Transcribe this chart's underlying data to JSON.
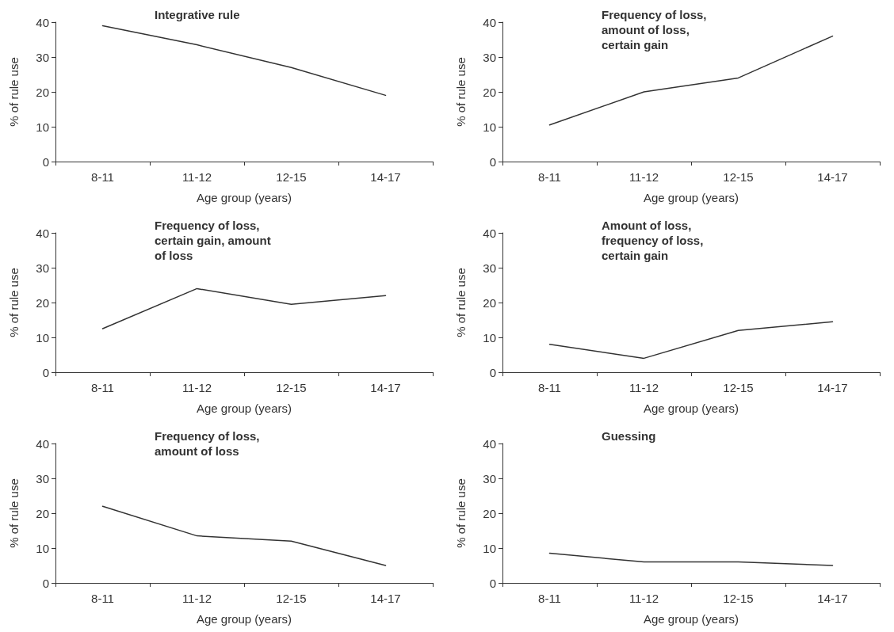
{
  "chart_data": [
    {
      "type": "line",
      "title": "Integrative rule",
      "xlabel": "Age group (years)",
      "ylabel": "% of rule use",
      "categories": [
        "8-11",
        "11-12",
        "12-15",
        "14-17"
      ],
      "series": [
        {
          "color": "#333333",
          "values": [
            39,
            33.5,
            27,
            19
          ]
        }
      ],
      "ylim": [
        0,
        40
      ],
      "yticks": [
        0,
        10,
        20,
        30,
        40
      ],
      "grid": false,
      "marker": "none",
      "line_style": "solid"
    },
    {
      "type": "line",
      "title": "Frequency of loss, amount of loss, certain gain",
      "xlabel": "Age group (years)",
      "ylabel": "% of rule use",
      "categories": [
        "8-11",
        "11-12",
        "12-15",
        "14-17"
      ],
      "series": [
        {
          "color": "#333333",
          "values": [
            10.5,
            20,
            24,
            36
          ]
        }
      ],
      "ylim": [
        0,
        40
      ],
      "yticks": [
        0,
        10,
        20,
        30,
        40
      ],
      "grid": false,
      "marker": "none",
      "line_style": "solid"
    },
    {
      "type": "line",
      "title": "Frequency of loss, certain gain, amount of loss",
      "xlabel": "Age group (years)",
      "ylabel": "% of rule use",
      "categories": [
        "8-11",
        "11-12",
        "12-15",
        "14-17"
      ],
      "series": [
        {
          "color": "#333333",
          "values": [
            12.5,
            24,
            19.5,
            22
          ]
        }
      ],
      "ylim": [
        0,
        40
      ],
      "yticks": [
        0,
        10,
        20,
        30,
        40
      ],
      "grid": false,
      "marker": "none",
      "line_style": "solid"
    },
    {
      "type": "line",
      "title": "Amount of loss, frequency of loss, certain gain",
      "xlabel": "Age group (years)",
      "ylabel": "% of rule use",
      "categories": [
        "8-11",
        "11-12",
        "12-15",
        "14-17"
      ],
      "series": [
        {
          "color": "#333333",
          "values": [
            8,
            4,
            12,
            14.5
          ]
        }
      ],
      "ylim": [
        0,
        40
      ],
      "yticks": [
        0,
        10,
        20,
        30,
        40
      ],
      "grid": false,
      "marker": "none",
      "line_style": "solid"
    },
    {
      "type": "line",
      "title": "Frequency of loss, amount of loss",
      "xlabel": "Age group (years)",
      "ylabel": "% of rule use",
      "categories": [
        "8-11",
        "11-12",
        "12-15",
        "14-17"
      ],
      "series": [
        {
          "color": "#333333",
          "values": [
            22,
            13.5,
            12,
            5
          ]
        }
      ],
      "ylim": [
        0,
        40
      ],
      "yticks": [
        0,
        10,
        20,
        30,
        40
      ],
      "grid": false,
      "marker": "none",
      "line_style": "solid"
    },
    {
      "type": "line",
      "title": "Guessing",
      "xlabel": "Age group (years)",
      "ylabel": "% of rule use",
      "categories": [
        "8-11",
        "11-12",
        "12-15",
        "14-17"
      ],
      "series": [
        {
          "color": "#333333",
          "values": [
            8.5,
            6,
            6,
            5
          ]
        }
      ],
      "ylim": [
        0,
        40
      ],
      "yticks": [
        0,
        10,
        20,
        30,
        40
      ],
      "grid": false,
      "marker": "none",
      "line_style": "solid"
    }
  ]
}
